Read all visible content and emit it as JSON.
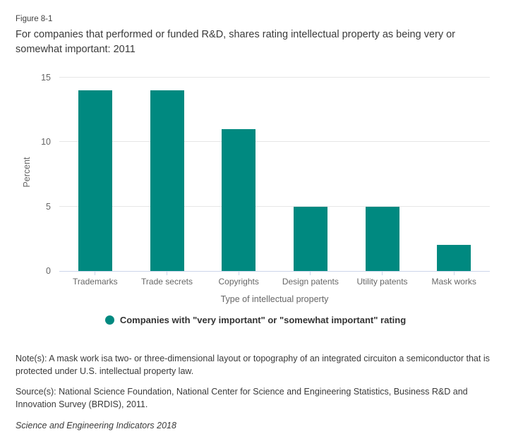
{
  "figure": {
    "label": "Figure 8-1",
    "title": "For companies that performed or funded R&D, shares rating intellectual property as being very or somewhat important: 2011"
  },
  "chart_data": {
    "type": "bar",
    "categories": [
      "Trademarks",
      "Trade secrets",
      "Copyrights",
      "Design patents",
      "Utility patents",
      "Mask works"
    ],
    "series": [
      {
        "name": "Companies with \"very important\" or \"somewhat important\" rating",
        "values": [
          14,
          14,
          11,
          5,
          5,
          2
        ]
      }
    ],
    "values": [
      14,
      14,
      11,
      5,
      5,
      2
    ],
    "title": "For companies that performed or funded R&D, shares rating intellectual property as being very or somewhat important: 2011",
    "xlabel": "Type of intellectual property",
    "ylabel": "Percent",
    "ylim": [
      0,
      15
    ],
    "yticks": [
      0,
      5,
      10,
      15
    ],
    "grid": true,
    "legend_position": "bottom-center"
  },
  "legend": {
    "label": "Companies with \"very important\" or \"somewhat important\" rating"
  },
  "notes": {
    "note": "Note(s): A mask work isa two- or three-dimensional layout or topography of an integrated circuiton a semiconductor that is protected under U.S. intellectual property law.",
    "source": "Source(s): National Science Foundation, National Center for Science and Engineering Statistics, Business R&D and Innovation Survey (BRDIS), 2011.",
    "footer": "Science and Engineering Indicators 2018"
  },
  "colors": {
    "bar": "#008980",
    "axis_line": "#ccd6eb",
    "gridline": "#e6e6e6",
    "axis_text": "#666666",
    "body_text": "#3a3a3a"
  }
}
